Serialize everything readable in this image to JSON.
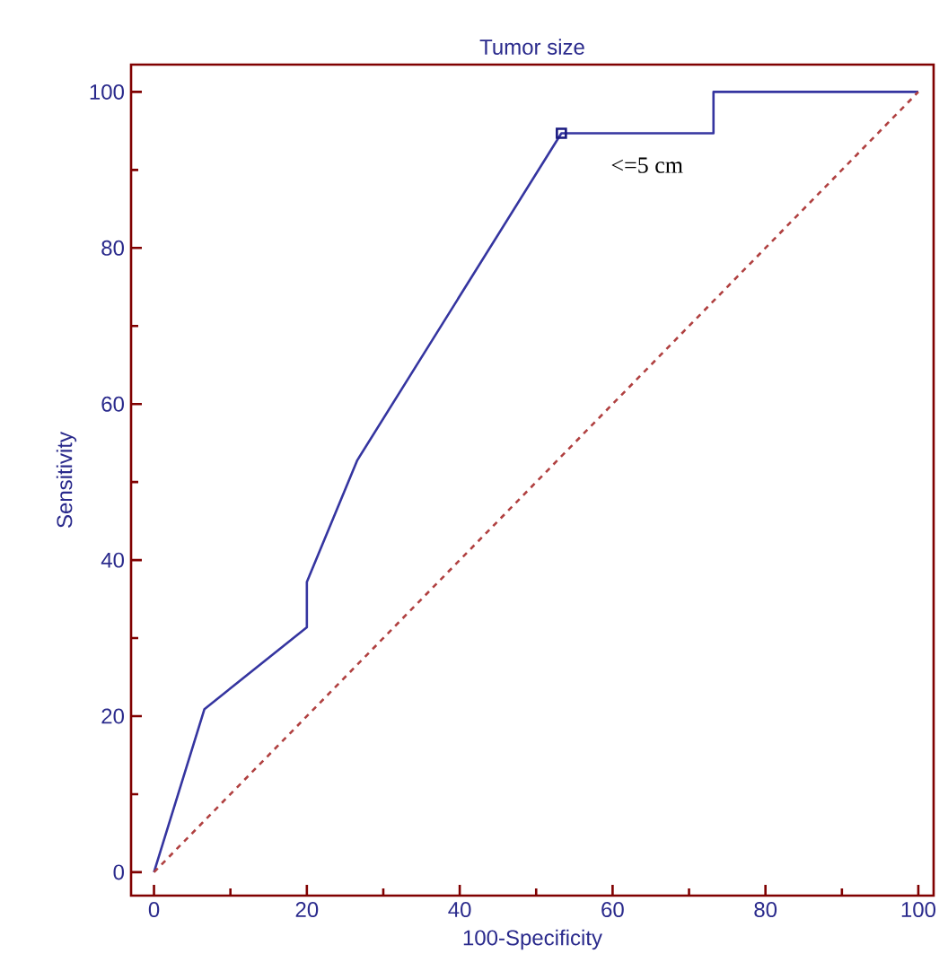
{
  "chart_data": {
    "type": "line",
    "title": "Tumor size",
    "xlabel": "100-Specificity",
    "ylabel": "Sensitivity",
    "xlim": [
      -3,
      102
    ],
    "ylim": [
      -3,
      103.5
    ],
    "xticks": [
      0,
      20,
      40,
      60,
      80,
      100
    ],
    "yticks": [
      0,
      20,
      40,
      60,
      80,
      100
    ],
    "grid": false,
    "series": [
      {
        "color": "#3535a0",
        "line_style": "solid",
        "marker": "none",
        "x": [
          0,
          6.6,
          20,
          20,
          26.6,
          53.3,
          73.2,
          73.2,
          100
        ],
        "values": [
          0,
          20.9,
          31.4,
          37.2,
          52.8,
          94.7,
          94.7,
          100,
          100
        ]
      },
      {
        "color": "#b04040",
        "line_style": "dashed",
        "marker": "none",
        "x": [
          0,
          100
        ],
        "values": [
          0,
          100
        ]
      },
      {
        "type": "scatter",
        "color": "#1a1a80",
        "marker": "square",
        "x": [
          53.3
        ],
        "values": [
          94.7
        ]
      }
    ],
    "annotations": [
      {
        "text": "<=5 cm",
        "x": 53.3,
        "y": 94.7
      }
    ]
  }
}
